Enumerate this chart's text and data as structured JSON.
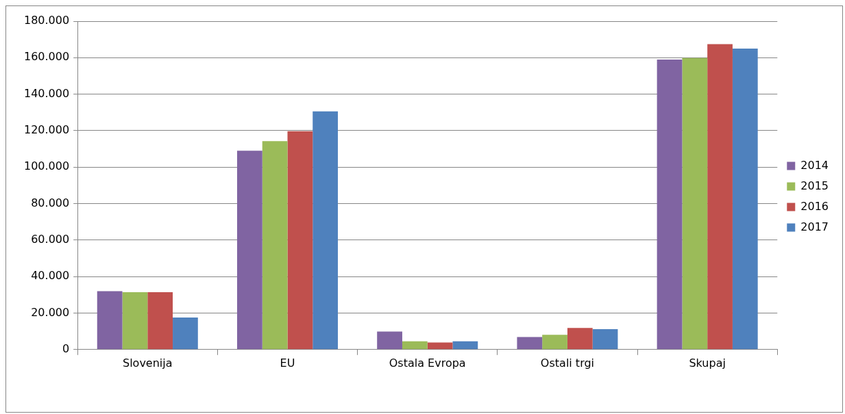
{
  "chart_data": {
    "type": "bar",
    "categories": [
      "Slovenija",
      "EU",
      "Ostala Evropa",
      "Ostali trgi",
      "Skupaj"
    ],
    "series": [
      {
        "name": "2014",
        "color": "#8064a2",
        "values": [
          32000,
          109000,
          9900,
          6900,
          159000
        ]
      },
      {
        "name": "2015",
        "color": "#9bbb59",
        "values": [
          31400,
          114300,
          4500,
          8100,
          159800
        ]
      },
      {
        "name": "2016",
        "color": "#c0504d",
        "values": [
          31400,
          119700,
          3900,
          11800,
          167400
        ]
      },
      {
        "name": "2017",
        "color": "#4f81bd",
        "values": [
          17600,
          130600,
          4500,
          11200,
          165000
        ]
      }
    ],
    "ylim": [
      0,
      180000
    ],
    "yticks": [
      0,
      {
        "value": 20000,
        "label": "20.000"
      },
      {
        "value": 40000,
        "label": "40.000"
      },
      {
        "value": 60000,
        "label": "60.000"
      },
      {
        "value": 80000,
        "label": "80.000"
      },
      {
        "value": 100000,
        "label": "100.000"
      },
      {
        "value": 120000,
        "label": "120.000"
      },
      {
        "value": 140000,
        "label": "140.000"
      },
      {
        "value": 160000,
        "label": "160.000"
      },
      {
        "value": 180000,
        "label": "180.000"
      }
    ],
    "grid": "y",
    "legend": "right"
  }
}
